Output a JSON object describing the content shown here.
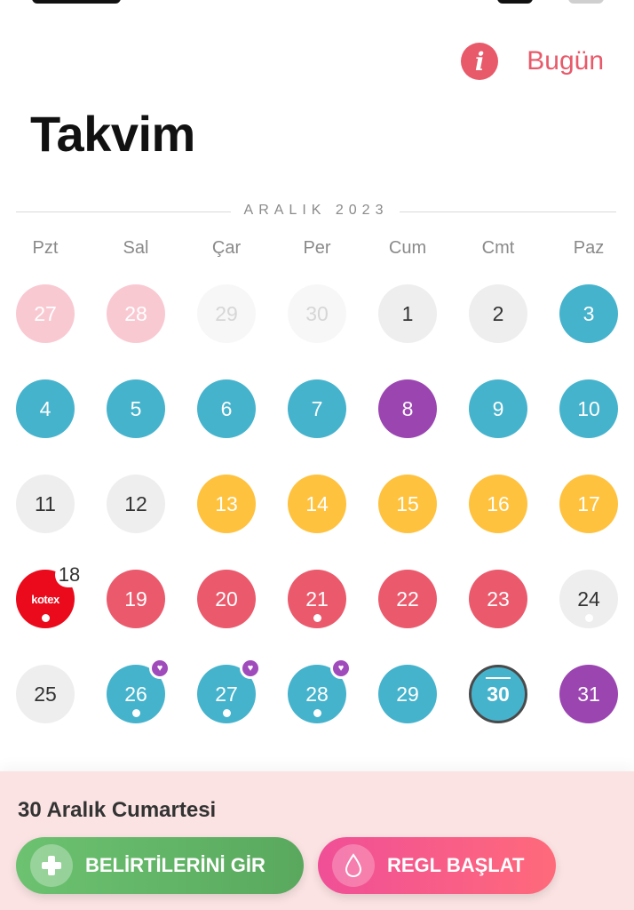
{
  "header": {
    "info_icon": "info-icon",
    "today_label": "Bugün",
    "title": "Takvim"
  },
  "calendar": {
    "month_label": "ARALIK 2023",
    "weekdays": [
      "Pzt",
      "Sal",
      "Çar",
      "Per",
      "Cum",
      "Cmt",
      "Paz"
    ],
    "colors": {
      "accent": "#e85a6a",
      "blue": "#46b3cd",
      "purple": "#9b45b1",
      "yellow": "#ffc23f",
      "red": "#ea5a6c",
      "pink": "#f9c9d2",
      "gray": "#eeeeee"
    },
    "weeks": [
      [
        {
          "day": "27",
          "type": "pink"
        },
        {
          "day": "28",
          "type": "pink"
        },
        {
          "day": "29",
          "type": "faint"
        },
        {
          "day": "30",
          "type": "faint"
        },
        {
          "day": "1",
          "type": "gray"
        },
        {
          "day": "2",
          "type": "gray"
        },
        {
          "day": "3",
          "type": "blue"
        }
      ],
      [
        {
          "day": "4",
          "type": "blue"
        },
        {
          "day": "5",
          "type": "blue"
        },
        {
          "day": "6",
          "type": "blue"
        },
        {
          "day": "7",
          "type": "blue"
        },
        {
          "day": "8",
          "type": "purple"
        },
        {
          "day": "9",
          "type": "blue"
        },
        {
          "day": "10",
          "type": "blue"
        }
      ],
      [
        {
          "day": "11",
          "type": "gray"
        },
        {
          "day": "12",
          "type": "gray"
        },
        {
          "day": "13",
          "type": "yellow"
        },
        {
          "day": "14",
          "type": "yellow"
        },
        {
          "day": "15",
          "type": "yellow"
        },
        {
          "day": "16",
          "type": "yellow"
        },
        {
          "day": "17",
          "type": "yellow"
        }
      ],
      [
        {
          "day": "18",
          "type": "kotex",
          "dot": true
        },
        {
          "day": "19",
          "type": "red"
        },
        {
          "day": "20",
          "type": "red"
        },
        {
          "day": "21",
          "type": "red",
          "dot": true
        },
        {
          "day": "22",
          "type": "red"
        },
        {
          "day": "23",
          "type": "red"
        },
        {
          "day": "24",
          "type": "gray",
          "dot": true
        }
      ],
      [
        {
          "day": "25",
          "type": "gray"
        },
        {
          "day": "26",
          "type": "blue",
          "dot": true,
          "heart": true
        },
        {
          "day": "27",
          "type": "blue",
          "dot": true,
          "heart": true
        },
        {
          "day": "28",
          "type": "blue",
          "dot": true,
          "heart": true
        },
        {
          "day": "29",
          "type": "blue"
        },
        {
          "day": "30",
          "type": "today"
        },
        {
          "day": "31",
          "type": "purple"
        }
      ]
    ],
    "kotex_logo": "kotex"
  },
  "bottom": {
    "selected_date": "30 Aralık Cumartesi",
    "symptoms_button": "BELİRTİLERİNİ GİR",
    "period_button": "REGL BAŞLAT",
    "symptoms_icon": "plus-icon",
    "period_icon": "drop-icon"
  }
}
